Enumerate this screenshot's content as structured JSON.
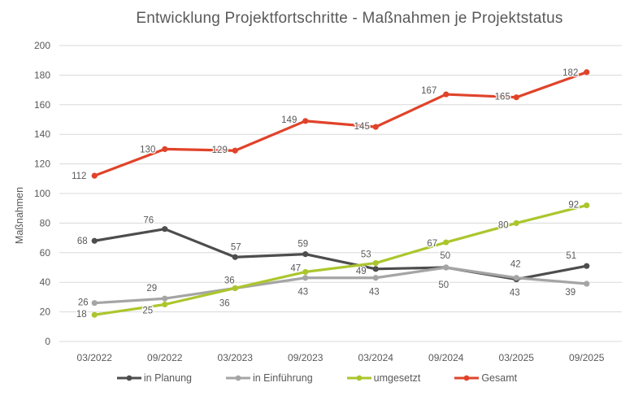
{
  "chart_data": {
    "type": "line",
    "title": "Entwicklung Projektfortschritte - Maßnahmen je Projektstatus",
    "xlabel": "",
    "ylabel": "Maßnahmen",
    "ylim": [
      0,
      200
    ],
    "yticks": [
      0,
      20,
      40,
      60,
      80,
      100,
      120,
      140,
      160,
      180,
      200
    ],
    "grid": true,
    "legend_position": "bottom",
    "categories": [
      "03/2022",
      "09/2022",
      "03/2023",
      "09/2023",
      "03/2024",
      "09/2024",
      "03/2025",
      "09/2025"
    ],
    "series": [
      {
        "name": "in Planung",
        "color": "#4D4D4D",
        "values": [
          68,
          76,
          57,
          59,
          49,
          50,
          42,
          51
        ],
        "label_offsets": [
          [
            -15,
            1
          ],
          [
            -20,
            -10
          ],
          [
            1,
            -12
          ],
          [
            -3,
            -12
          ],
          [
            -18,
            3
          ],
          [
            -1,
            -14
          ],
          [
            -1,
            -18
          ],
          [
            -19,
            -12
          ]
        ]
      },
      {
        "name": "in Einführung",
        "color": "#A5A5A5",
        "values": [
          26,
          29,
          36,
          43,
          43,
          50,
          43,
          39
        ],
        "label_offsets": [
          [
            -14,
            0
          ],
          [
            -16,
            -12
          ],
          [
            -7,
            -9
          ],
          [
            -3,
            18
          ],
          [
            -2,
            18
          ],
          [
            -3,
            22
          ],
          [
            -2,
            19
          ],
          [
            -20,
            11
          ]
        ]
      },
      {
        "name": "umgesetzt",
        "color": "#ABC62D",
        "values": [
          18,
          25,
          36,
          47,
          53,
          67,
          80,
          92
        ],
        "label_offsets": [
          [
            -16,
            0
          ],
          [
            -21,
            8
          ],
          [
            -13,
            19
          ],
          [
            -12,
            -4
          ],
          [
            -12,
            -10
          ],
          [
            -17,
            2
          ],
          [
            -16,
            3
          ],
          [
            -16,
            0
          ]
        ]
      },
      {
        "name": "Gesamt",
        "color": "#E0432A",
        "values": [
          112,
          130,
          129,
          149,
          145,
          167,
          165,
          182
        ],
        "label_offsets": [
          [
            -19,
            1
          ],
          [
            -21,
            1
          ],
          [
            -19,
            0
          ],
          [
            -20,
            -1
          ],
          [
            -17,
            0
          ],
          [
            -21,
            -4
          ],
          [
            -17,
            0
          ],
          [
            -20,
            1
          ]
        ]
      }
    ]
  },
  "colors": {
    "text": "#595959",
    "grid": "#D9D9D9",
    "background": "#FFFFFF",
    "data_label": "#595959"
  }
}
